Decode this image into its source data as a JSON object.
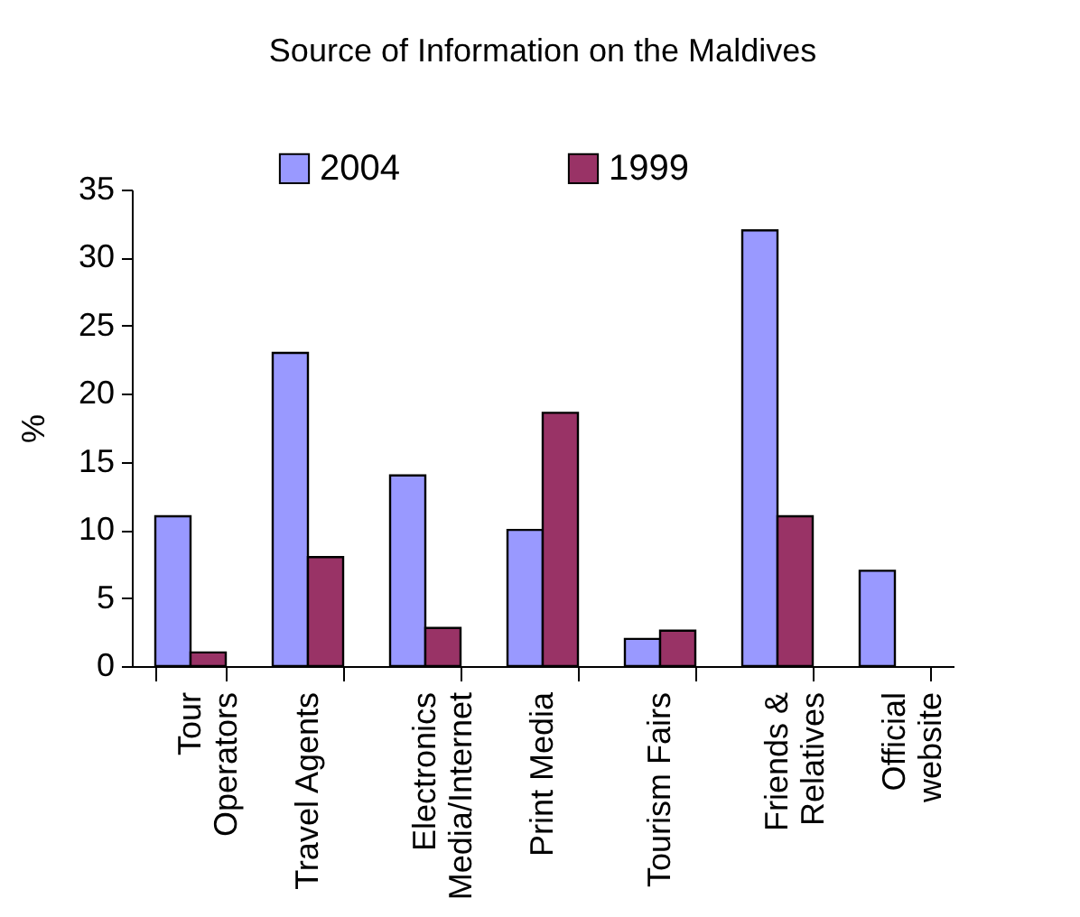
{
  "chart_data": {
    "type": "bar",
    "title": "Source of Information on the Maldives",
    "ylabel": "%",
    "categories": [
      "Tour\nOperators",
      "Travel Agents",
      "Electronics\nMedia/Internet",
      "Print Media",
      "Tourism Fairs",
      "Friends &\nRelatives",
      "Official\nwebsite"
    ],
    "series": [
      {
        "name": "2004",
        "color": "#9999ff",
        "values": [
          11,
          23,
          14,
          10,
          2,
          32,
          7
        ]
      },
      {
        "name": "1999",
        "color": "#993366",
        "values": [
          1,
          8,
          2.8,
          18.6,
          2.6,
          11,
          null
        ]
      }
    ],
    "ylim": [
      0,
      35
    ],
    "yticks": [
      0,
      5,
      10,
      15,
      20,
      25,
      30,
      35
    ],
    "grid": false,
    "legend": "top"
  }
}
